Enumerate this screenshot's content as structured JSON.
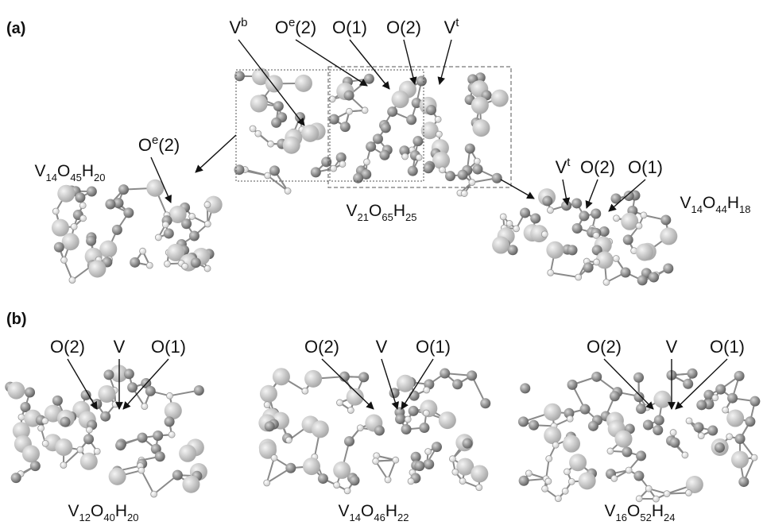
{
  "panel_a": {
    "label": "(a)",
    "center": {
      "labels": [
        {
          "text": "V",
          "sup": "b"
        },
        {
          "text": "O",
          "sup": "e",
          "tail": "(2)"
        },
        {
          "text": "O(1)"
        },
        {
          "text": "O(2)"
        },
        {
          "text": "V",
          "sup": "t"
        }
      ],
      "formula": [
        {
          "el": "V",
          "n": 21
        },
        {
          "el": "O",
          "n": 65
        },
        {
          "el": "H",
          "n": 25
        }
      ]
    },
    "left": {
      "labels": [
        {
          "text": "O",
          "sup": "e",
          "tail": "(2)"
        }
      ],
      "formula": [
        {
          "el": "V",
          "n": 14
        },
        {
          "el": "O",
          "n": 45
        },
        {
          "el": "H",
          "n": 20
        }
      ]
    },
    "right": {
      "labels": [
        {
          "text": "V",
          "sup": "t"
        },
        {
          "text": "O(2)"
        },
        {
          "text": "O(1)"
        }
      ],
      "formula": [
        {
          "el": "V",
          "n": 14
        },
        {
          "el": "O",
          "n": 44
        },
        {
          "el": "H",
          "n": 18
        }
      ]
    }
  },
  "panel_b": {
    "label": "(b)",
    "clusters": [
      {
        "labels": [
          {
            "text": "O(2)"
          },
          {
            "text": "V"
          },
          {
            "text": "O(1)"
          }
        ],
        "formula": [
          {
            "el": "V",
            "n": 12
          },
          {
            "el": "O",
            "n": 40
          },
          {
            "el": "H",
            "n": 20
          }
        ]
      },
      {
        "labels": [
          {
            "text": "O(2)"
          },
          {
            "text": "V"
          },
          {
            "text": "O(1)"
          }
        ],
        "formula": [
          {
            "el": "V",
            "n": 14
          },
          {
            "el": "O",
            "n": 46
          },
          {
            "el": "H",
            "n": 22
          }
        ]
      },
      {
        "labels": [
          {
            "text": "O(2)"
          },
          {
            "text": "V"
          },
          {
            "text": "O(1)"
          }
        ],
        "formula": [
          {
            "el": "V",
            "n": 16
          },
          {
            "el": "O",
            "n": 52
          },
          {
            "el": "H",
            "n": 24
          }
        ]
      }
    ]
  }
}
